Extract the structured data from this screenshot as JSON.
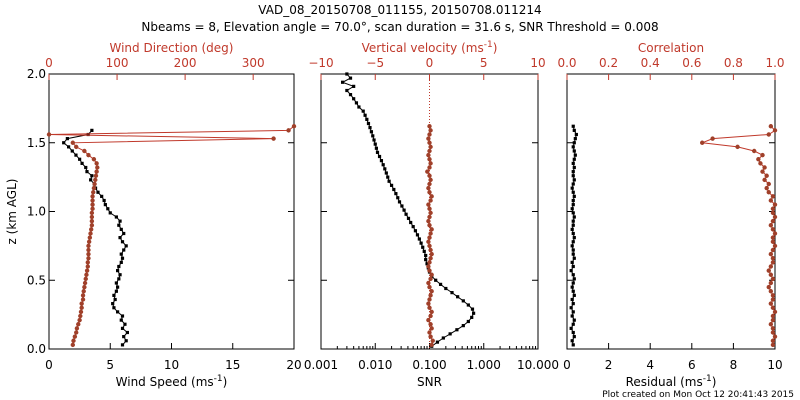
{
  "header": {
    "title_line1": "VAD_08_20150708_011155, 20150708.011214",
    "title_line2": "Nbeams = 8, Elevation angle = 70.0°, scan duration = 31.6 s, SNR Threshold = 0.008"
  },
  "footer": {
    "credit": "Plot created on Mon Oct 12 20:41:43 2015"
  },
  "colors": {
    "primary": "#000000",
    "secondary": "#c0392b",
    "marker": "#a0402a"
  },
  "chart_data": [
    {
      "type": "line",
      "panel": "wind",
      "ylabel": "z (km AGL)",
      "ylim": [
        0.0,
        2.0
      ],
      "yticks": [
        "0.0",
        "0.5",
        "1.0",
        "1.5",
        "2.0"
      ],
      "bottom_axis": {
        "label": "Wind Speed (ms",
        "unit_sup": "-1",
        "unit_close": ")",
        "range": [
          0,
          20
        ],
        "ticks": [
          "0",
          "5",
          "10",
          "15",
          "20"
        ]
      },
      "top_axis": {
        "label": "Wind Direction (deg)",
        "range": [
          0,
          360
        ],
        "ticks": [
          "0",
          "100",
          "200",
          "300"
        ]
      },
      "series": [
        {
          "name": "Wind Speed",
          "axis": "bottom",
          "color": "#000000",
          "z": [
            0.03,
            0.06,
            0.09,
            0.12,
            0.15,
            0.18,
            0.21,
            0.24,
            0.27,
            0.3,
            0.33,
            0.36,
            0.39,
            0.42,
            0.45,
            0.48,
            0.51,
            0.54,
            0.57,
            0.6,
            0.63,
            0.66,
            0.69,
            0.72,
            0.75,
            0.78,
            0.81,
            0.84,
            0.87,
            0.9,
            0.93,
            0.96,
            0.99,
            1.02,
            1.05,
            1.08,
            1.11,
            1.14,
            1.17,
            1.2,
            1.23,
            1.26,
            1.29,
            1.32,
            1.35,
            1.38,
            1.41,
            1.44,
            1.47,
            1.5,
            1.53,
            1.56,
            1.59
          ],
          "values": [
            6.0,
            6.3,
            6.1,
            6.4,
            6.0,
            6.2,
            5.9,
            6.0,
            5.6,
            5.3,
            5.2,
            5.4,
            5.3,
            5.5,
            5.6,
            5.5,
            5.7,
            5.8,
            5.6,
            5.7,
            5.9,
            6.0,
            5.9,
            6.1,
            6.3,
            6.0,
            5.8,
            6.1,
            5.9,
            5.7,
            5.8,
            5.5,
            5.0,
            4.8,
            4.6,
            4.5,
            4.3,
            4.0,
            3.8,
            3.7,
            3.4,
            3.5,
            3.1,
            3.0,
            2.7,
            2.5,
            2.2,
            1.9,
            1.6,
            1.2,
            1.5,
            3.2,
            3.5
          ]
        },
        {
          "name": "Wind Direction",
          "axis": "top",
          "color": "#c0392b",
          "z": [
            0.03,
            0.06,
            0.09,
            0.12,
            0.15,
            0.18,
            0.21,
            0.24,
            0.27,
            0.3,
            0.33,
            0.36,
            0.39,
            0.42,
            0.45,
            0.48,
            0.51,
            0.54,
            0.57,
            0.6,
            0.63,
            0.66,
            0.69,
            0.72,
            0.75,
            0.78,
            0.81,
            0.84,
            0.87,
            0.9,
            0.93,
            0.96,
            0.99,
            1.02,
            1.05,
            1.08,
            1.11,
            1.14,
            1.17,
            1.2,
            1.23,
            1.26,
            1.29,
            1.32,
            1.35,
            1.38,
            1.41,
            1.44,
            1.47,
            1.5,
            1.53,
            1.56,
            1.59,
            1.62
          ],
          "values": [
            35,
            36,
            38,
            40,
            41,
            43,
            45,
            46,
            47,
            48,
            48,
            50,
            50,
            51,
            52,
            53,
            54,
            55,
            56,
            57,
            57,
            58,
            58,
            58,
            58,
            59,
            60,
            61,
            62,
            63,
            63,
            63,
            63,
            64,
            64,
            64,
            64,
            65,
            66,
            67,
            68,
            69,
            70,
            71,
            70,
            66,
            58,
            52,
            40,
            35,
            330,
            0,
            352,
            360
          ]
        }
      ]
    },
    {
      "type": "line",
      "panel": "vertical",
      "ylim": [
        0.0,
        2.0
      ],
      "bottom_axis": {
        "label": "SNR",
        "scale": "log",
        "range": [
          0.001,
          10.0
        ],
        "ticks": [
          "0.001",
          "0.010",
          "0.100",
          "1.000",
          "10.000"
        ]
      },
      "top_axis": {
        "label": "Vertical velocity (ms",
        "unit_sup": "-1",
        "unit_close": ")",
        "range": [
          -10,
          10
        ],
        "ticks": [
          "−10",
          "−5",
          "0",
          "5",
          "10"
        ]
      },
      "zero_line": 0,
      "series": [
        {
          "name": "SNR",
          "axis": "bottom",
          "color": "#000000",
          "z": [
            0.02,
            0.05,
            0.08,
            0.11,
            0.14,
            0.17,
            0.2,
            0.23,
            0.26,
            0.29,
            0.32,
            0.35,
            0.38,
            0.41,
            0.44,
            0.47,
            0.5,
            0.53,
            0.56,
            0.59,
            0.62,
            0.65,
            0.68,
            0.71,
            0.74,
            0.77,
            0.8,
            0.83,
            0.86,
            0.89,
            0.92,
            0.95,
            0.98,
            1.01,
            1.04,
            1.07,
            1.1,
            1.13,
            1.16,
            1.19,
            1.22,
            1.25,
            1.28,
            1.31,
            1.34,
            1.37,
            1.4,
            1.43,
            1.46,
            1.49,
            1.52,
            1.55,
            1.58,
            1.61,
            1.64,
            1.67,
            1.7,
            1.73,
            1.76,
            1.79,
            1.82,
            1.85,
            1.88,
            1.91,
            1.94,
            1.97,
            2.0
          ],
          "values": [
            0.11,
            0.14,
            0.18,
            0.24,
            0.32,
            0.42,
            0.52,
            0.6,
            0.65,
            0.62,
            0.52,
            0.42,
            0.33,
            0.26,
            0.2,
            0.16,
            0.13,
            0.11,
            0.1,
            0.095,
            0.09,
            0.085,
            0.085,
            0.08,
            0.075,
            0.07,
            0.065,
            0.06,
            0.055,
            0.05,
            0.045,
            0.041,
            0.037,
            0.034,
            0.031,
            0.028,
            0.026,
            0.024,
            0.022,
            0.02,
            0.018,
            0.017,
            0.016,
            0.015,
            0.014,
            0.013,
            0.012,
            0.011,
            0.0105,
            0.01,
            0.0095,
            0.009,
            0.0085,
            0.008,
            0.0075,
            0.007,
            0.0065,
            0.006,
            0.005,
            0.0045,
            0.004,
            0.0035,
            0.003,
            0.004,
            0.0025,
            0.0035,
            0.003
          ]
        },
        {
          "name": "Vertical velocity",
          "axis": "top",
          "color": "#c0392b",
          "z": [
            0.03,
            0.06,
            0.09,
            0.12,
            0.15,
            0.18,
            0.21,
            0.24,
            0.27,
            0.3,
            0.33,
            0.36,
            0.39,
            0.42,
            0.45,
            0.48,
            0.51,
            0.54,
            0.57,
            0.6,
            0.63,
            0.66,
            0.69,
            0.72,
            0.75,
            0.78,
            0.81,
            0.84,
            0.87,
            0.9,
            0.93,
            0.96,
            0.99,
            1.02,
            1.05,
            1.08,
            1.11,
            1.14,
            1.17,
            1.2,
            1.23,
            1.26,
            1.29,
            1.32,
            1.35,
            1.38,
            1.41,
            1.44,
            1.47,
            1.5,
            1.53,
            1.56,
            1.59,
            1.62
          ],
          "values": [
            0.2,
            0.3,
            0.1,
            0.0,
            0.2,
            0.1,
            -0.1,
            0.1,
            0.2,
            0.0,
            -0.1,
            0.0,
            0.1,
            0.2,
            0.0,
            -0.1,
            0.1,
            0.2,
            0.0,
            -0.1,
            0.0,
            0.1,
            0.2,
            0.1,
            0.0,
            -0.1,
            0.0,
            0.1,
            0.2,
            0.0,
            -0.1,
            0.0,
            0.1,
            0.0,
            -0.1,
            0.1,
            0.2,
            0.0,
            -0.1,
            0.0,
            0.1,
            0.0,
            -0.2,
            0.0,
            0.1,
            0.0,
            -0.1,
            0.0,
            0.1,
            0.0,
            -0.1,
            0.0,
            0.1,
            0.0
          ]
        }
      ]
    },
    {
      "type": "line",
      "panel": "correlation",
      "ylim": [
        0.0,
        2.0
      ],
      "bottom_axis": {
        "label": "Residual (ms",
        "unit_sup": "-1",
        "unit_close": ")",
        "range": [
          0,
          10
        ],
        "ticks": [
          "0",
          "2",
          "4",
          "6",
          "8",
          "10"
        ]
      },
      "top_axis": {
        "label": "Correlation",
        "range": [
          0.0,
          1.0
        ],
        "ticks": [
          "0.0",
          "0.2",
          "0.4",
          "0.6",
          "0.8",
          "1.0"
        ]
      },
      "series": [
        {
          "name": "Residual",
          "axis": "bottom",
          "color": "#000000",
          "z": [
            0.03,
            0.06,
            0.09,
            0.12,
            0.15,
            0.18,
            0.21,
            0.24,
            0.27,
            0.3,
            0.33,
            0.36,
            0.39,
            0.42,
            0.45,
            0.48,
            0.51,
            0.54,
            0.57,
            0.6,
            0.63,
            0.66,
            0.69,
            0.72,
            0.75,
            0.78,
            0.81,
            0.84,
            0.87,
            0.9,
            0.93,
            0.96,
            0.99,
            1.02,
            1.05,
            1.08,
            1.11,
            1.14,
            1.17,
            1.2,
            1.23,
            1.26,
            1.29,
            1.32,
            1.35,
            1.38,
            1.41,
            1.44,
            1.47,
            1.5,
            1.53,
            1.56,
            1.59,
            1.62
          ],
          "values": [
            0.3,
            0.25,
            0.35,
            0.3,
            0.2,
            0.3,
            0.35,
            0.25,
            0.3,
            0.2,
            0.3,
            0.25,
            0.35,
            0.3,
            0.25,
            0.3,
            0.35,
            0.3,
            0.2,
            0.3,
            0.25,
            0.35,
            0.3,
            0.3,
            0.25,
            0.3,
            0.35,
            0.3,
            0.25,
            0.3,
            0.3,
            0.35,
            0.3,
            0.25,
            0.3,
            0.3,
            0.35,
            0.3,
            0.25,
            0.3,
            0.35,
            0.3,
            0.3,
            0.35,
            0.3,
            0.35,
            0.4,
            0.35,
            0.3,
            0.35,
            0.4,
            0.45,
            0.35,
            0.3
          ]
        },
        {
          "name": "Correlation",
          "axis": "top",
          "color": "#c0392b",
          "z": [
            0.03,
            0.06,
            0.09,
            0.12,
            0.15,
            0.18,
            0.21,
            0.24,
            0.27,
            0.3,
            0.33,
            0.36,
            0.39,
            0.42,
            0.45,
            0.48,
            0.51,
            0.54,
            0.57,
            0.6,
            0.63,
            0.66,
            0.69,
            0.72,
            0.75,
            0.78,
            0.81,
            0.84,
            0.87,
            0.9,
            0.93,
            0.96,
            0.99,
            1.02,
            1.05,
            1.08,
            1.11,
            1.14,
            1.17,
            1.2,
            1.23,
            1.26,
            1.29,
            1.32,
            1.35,
            1.38,
            1.41,
            1.44,
            1.47,
            1.5,
            1.53,
            1.56,
            1.59,
            1.62
          ],
          "values": [
            0.99,
            0.99,
            1.0,
            0.99,
            0.99,
            0.98,
            0.99,
            0.99,
            1.0,
            0.99,
            0.98,
            0.99,
            0.99,
            0.98,
            0.97,
            0.98,
            0.99,
            0.98,
            0.97,
            0.98,
            0.99,
            0.99,
            0.98,
            0.99,
            1.0,
            0.99,
            0.99,
            1.0,
            0.99,
            0.98,
            0.99,
            1.0,
            0.99,
            0.99,
            1.0,
            0.98,
            0.99,
            0.97,
            0.96,
            0.97,
            0.95,
            0.96,
            0.94,
            0.95,
            0.93,
            0.92,
            0.94,
            0.9,
            0.82,
            0.65,
            0.7,
            0.97,
            1.0,
            0.98
          ]
        }
      ]
    }
  ]
}
